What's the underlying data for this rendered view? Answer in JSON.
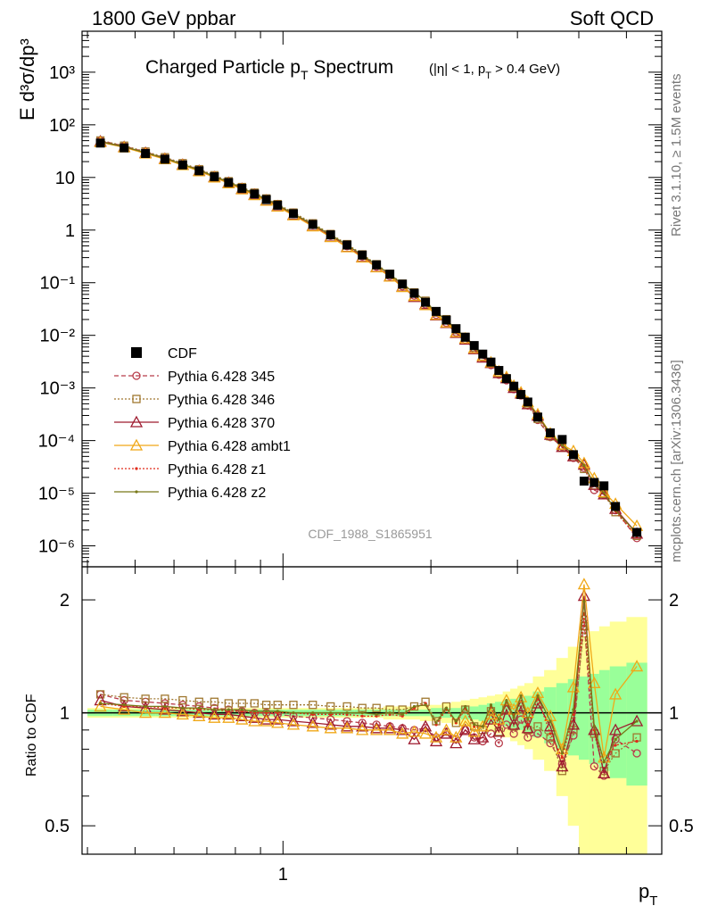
{
  "header": {
    "left": "1800 GeV ppbar",
    "right": "Soft QCD"
  },
  "side_text": {
    "top": "Rivet 3.1.10, ≥ 1.5M events",
    "bottom": "mcplots.cern.ch [arXiv:1306.3436]"
  },
  "analysis_id": "CDF_1988_S1865951",
  "chart_data": [
    {
      "type": "scatter",
      "title_main": "Charged Particle p",
      "title_sub": "T",
      "title_tail": " Spectrum",
      "cut_text": [
        "(|η| < 1, p",
        "T",
        " > 0.4 GeV)"
      ],
      "ylabel": "E d³σ/dp³",
      "xlabel": "p",
      "xlabel_sub": "T",
      "yscale": "log",
      "xscale": "log",
      "xlim": [
        0.39,
        5.9
      ],
      "ylim": [
        4e-07,
        6000
      ],
      "xtick_labels": [
        "1"
      ],
      "ytick_labels": [
        "10⁻⁶",
        "10⁻⁵",
        "10⁻⁴",
        "10⁻³",
        "10⁻²",
        "10⁻¹",
        "1",
        "10",
        "10²",
        "10³"
      ],
      "legend": [
        {
          "name": "CDF",
          "color": "#000000",
          "marker": "square-filled",
          "line": "none"
        },
        {
          "name": "Pythia 6.428 345",
          "color": "#b83c4a",
          "marker": "circle",
          "line": "dashed"
        },
        {
          "name": "Pythia 6.428 346",
          "color": "#a07830",
          "marker": "square",
          "line": "dotted"
        },
        {
          "name": "Pythia 6.428 370",
          "color": "#9e1a2e",
          "marker": "triangle",
          "line": "solid"
        },
        {
          "name": "Pythia 6.428 ambt1",
          "color": "#f0a818",
          "marker": "triangle",
          "line": "solid"
        },
        {
          "name": "Pythia 6.428 z1",
          "color": "#e02a1a",
          "marker": "dot",
          "line": "dotted"
        },
        {
          "name": "Pythia 6.428 z2",
          "color": "#787818",
          "marker": "dot",
          "line": "solid"
        }
      ],
      "x": [
        0.425,
        0.475,
        0.525,
        0.575,
        0.625,
        0.675,
        0.725,
        0.775,
        0.825,
        0.875,
        0.925,
        0.975,
        1.05,
        1.15,
        1.25,
        1.35,
        1.45,
        1.55,
        1.65,
        1.75,
        1.85,
        1.95,
        2.05,
        2.15,
        2.25,
        2.35,
        2.45,
        2.55,
        2.65,
        2.75,
        2.85,
        2.95,
        3.05,
        3.15,
        3.3,
        3.5,
        3.7,
        3.9,
        4.1,
        4.3,
        4.5,
        4.75,
        5.25
      ],
      "series_cdf": [
        45.0,
        36.5,
        28.5,
        22.2,
        17.3,
        13.4,
        10.3,
        8.0,
        6.2,
        4.85,
        3.8,
        2.97,
        2.05,
        1.28,
        0.81,
        0.52,
        0.335,
        0.218,
        0.145,
        0.094,
        0.063,
        0.0425,
        0.0285,
        0.0195,
        0.0134,
        0.0092,
        0.0064,
        0.0044,
        0.0031,
        0.00215,
        0.0015,
        0.00108,
        0.00075,
        0.00054,
        0.00028,
        0.00014,
        0.000105,
        5.4e-05,
        1.7e-05,
        1.6e-05,
        1.38e-05,
        5.6e-06,
        1.8e-06
      ]
    },
    {
      "type": "scatter",
      "ylabel": "Ratio to CDF",
      "yscale": "log",
      "ylim": [
        0.42,
        2.45
      ],
      "reference_line": 1.0,
      "ytick_labels": [
        "0.5",
        "1",
        "2"
      ],
      "ratios": {
        "Pythia 6.428 345": [
          1.12,
          1.08,
          1.07,
          1.06,
          1.05,
          1.04,
          1.03,
          1.02,
          1.01,
          1.0,
          1.0,
          0.99,
          0.98,
          0.97,
          0.96,
          0.95,
          0.94,
          0.93,
          0.92,
          0.91,
          0.9,
          0.91,
          0.86,
          0.89,
          0.85,
          0.9,
          0.86,
          0.84,
          0.88,
          0.83,
          0.93,
          0.88,
          0.96,
          0.86,
          0.88,
          0.83,
          0.73,
          0.87,
          1.78,
          0.72,
          0.68,
          0.85,
          0.78
        ],
        "Pythia 6.428 346": [
          1.12,
          1.1,
          1.09,
          1.09,
          1.08,
          1.07,
          1.07,
          1.06,
          1.06,
          1.06,
          1.05,
          1.05,
          1.05,
          1.05,
          1.04,
          1.04,
          1.03,
          1.03,
          1.02,
          1.02,
          1.04,
          1.07,
          0.95,
          1.04,
          0.94,
          1.02,
          0.92,
          0.9,
          1.01,
          0.89,
          1.02,
          0.92,
          1.02,
          0.9,
          0.92,
          0.86,
          0.7,
          0.9,
          1.7,
          0.88,
          0.7,
          0.78,
          0.86
        ],
        "Pythia 6.428 370": [
          1.08,
          1.04,
          1.03,
          1.02,
          1.01,
          1.0,
          0.99,
          0.99,
          0.98,
          0.97,
          0.96,
          0.96,
          0.95,
          0.94,
          0.93,
          0.92,
          0.92,
          0.91,
          0.91,
          0.9,
          0.85,
          0.92,
          0.84,
          0.88,
          0.83,
          0.9,
          0.85,
          0.86,
          0.96,
          0.89,
          1.02,
          0.93,
          1.04,
          0.91,
          1.06,
          0.92,
          0.72,
          0.93,
          2.05,
          0.9,
          0.69,
          0.9,
          0.95
        ],
        "Pythia 6.428 ambt1": [
          1.04,
          1.02,
          1.0,
          1.0,
          0.99,
          0.98,
          0.97,
          0.97,
          0.96,
          0.95,
          0.95,
          0.94,
          0.93,
          0.92,
          0.91,
          0.91,
          0.9,
          0.9,
          0.9,
          0.88,
          0.89,
          0.88,
          0.86,
          0.9,
          0.86,
          0.95,
          0.89,
          0.92,
          0.99,
          0.96,
          1.08,
          1.02,
          1.1,
          1.0,
          1.13,
          0.98,
          0.8,
          1.17,
          2.2,
          1.2,
          0.76,
          1.12,
          1.33
        ],
        "Pythia 6.428 z1": [
          1.06,
          1.04,
          1.04,
          1.03,
          1.03,
          1.02,
          1.02,
          1.01,
          1.01,
          1.0,
          1.0,
          1.0,
          1.0,
          0.99,
          0.99,
          0.99,
          0.98,
          0.98,
          0.99,
          0.98,
          1.03,
          1.06,
          0.93,
          1.02,
          0.94,
          1.03,
          0.92,
          0.92,
          1.04,
          0.93,
          1.07,
          0.98,
          1.1,
          0.93,
          1.09,
          0.88,
          0.76,
          0.99,
          1.84,
          0.9,
          0.74,
          0.82,
          0.84
        ],
        "Pythia 6.428 z2": [
          1.06,
          1.05,
          1.04,
          1.04,
          1.03,
          1.03,
          1.02,
          1.02,
          1.02,
          1.01,
          1.01,
          1.01,
          1.0,
          1.0,
          1.0,
          1.0,
          1.0,
          0.99,
          1.0,
          0.99,
          1.04,
          1.05,
          0.94,
          1.03,
          0.95,
          1.04,
          0.93,
          0.92,
          1.05,
          0.96,
          1.08,
          0.97,
          1.11,
          0.96,
          1.11,
          0.95,
          0.78,
          1.02,
          1.98,
          0.92,
          0.74,
          0.85,
          0.95
        ]
      },
      "band_green_halfwidth": [
        0.02,
        0.02,
        0.02,
        0.02,
        0.02,
        0.02,
        0.02,
        0.02,
        0.02,
        0.02,
        0.02,
        0.02,
        0.02,
        0.02,
        0.02,
        0.02,
        0.02,
        0.02,
        0.02,
        0.02,
        0.02,
        0.02,
        0.03,
        0.03,
        0.03,
        0.04,
        0.04,
        0.05,
        0.06,
        0.07,
        0.08,
        0.09,
        0.1,
        0.11,
        0.14,
        0.17,
        0.2,
        0.23,
        0.25,
        0.27,
        0.3,
        0.33,
        0.36
      ],
      "band_yellow_halfwidth": [
        0.03,
        0.03,
        0.03,
        0.03,
        0.03,
        0.03,
        0.03,
        0.03,
        0.03,
        0.03,
        0.03,
        0.03,
        0.03,
        0.03,
        0.03,
        0.03,
        0.03,
        0.03,
        0.04,
        0.04,
        0.04,
        0.05,
        0.05,
        0.06,
        0.07,
        0.08,
        0.09,
        0.1,
        0.11,
        0.12,
        0.14,
        0.16,
        0.18,
        0.2,
        0.25,
        0.3,
        0.4,
        0.5,
        0.6,
        0.65,
        0.7,
        0.75,
        0.8
      ]
    }
  ]
}
